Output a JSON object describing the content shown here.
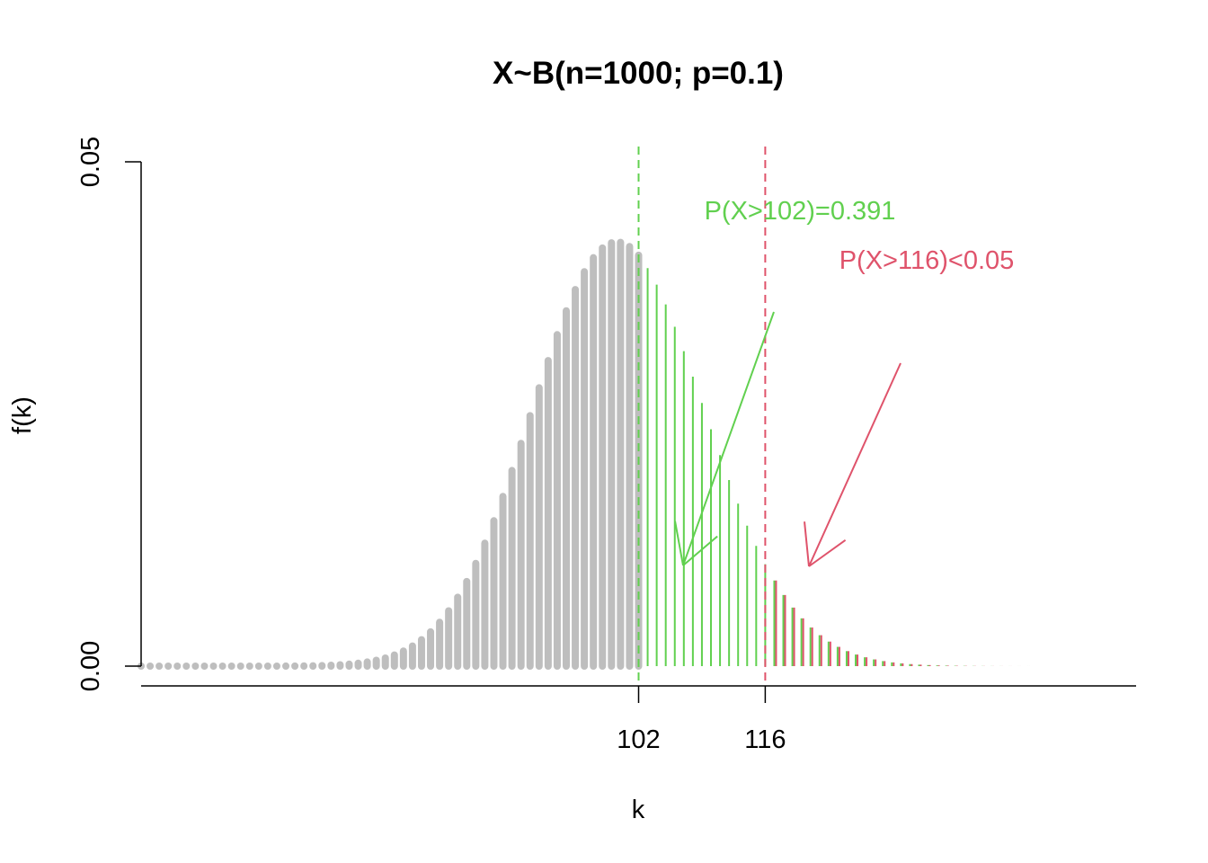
{
  "chart_data": {
    "type": "bar",
    "title": "X~B(n=1000; p=0.1)",
    "xlabel": "k",
    "ylabel": "f(k)",
    "distribution": {
      "n": 1000,
      "p": 0.1
    },
    "x_range": [
      47,
      157
    ],
    "ylim": [
      0,
      0.05
    ],
    "x_ticks": [
      102,
      116
    ],
    "x_tick_labels": [
      "102",
      "116"
    ],
    "y_ticks": [
      0,
      0.05
    ],
    "y_tick_labels": [
      "0.00",
      "0.05"
    ],
    "regions": [
      {
        "name": "k <= 102",
        "k_from": 47,
        "k_to": 102,
        "color": "#bebebe"
      },
      {
        "name": "k > 102",
        "k_from": 103,
        "k_to": 157,
        "color": "#61D04F"
      },
      {
        "name": "k > 116",
        "k_from": 117,
        "k_to": 157,
        "color": "#DF536B"
      }
    ],
    "reference_lines": [
      {
        "k": 102,
        "color": "#61D04F"
      },
      {
        "k": 116,
        "color": "#DF536B"
      }
    ],
    "annotations": [
      {
        "text": "P(X>102)=0.391",
        "color": "#61D04F",
        "arrow_points_to_k": 105
      },
      {
        "text": "P(X>116)<0.05",
        "color": "#DF536B",
        "arrow_points_to_k": 121
      }
    ]
  }
}
